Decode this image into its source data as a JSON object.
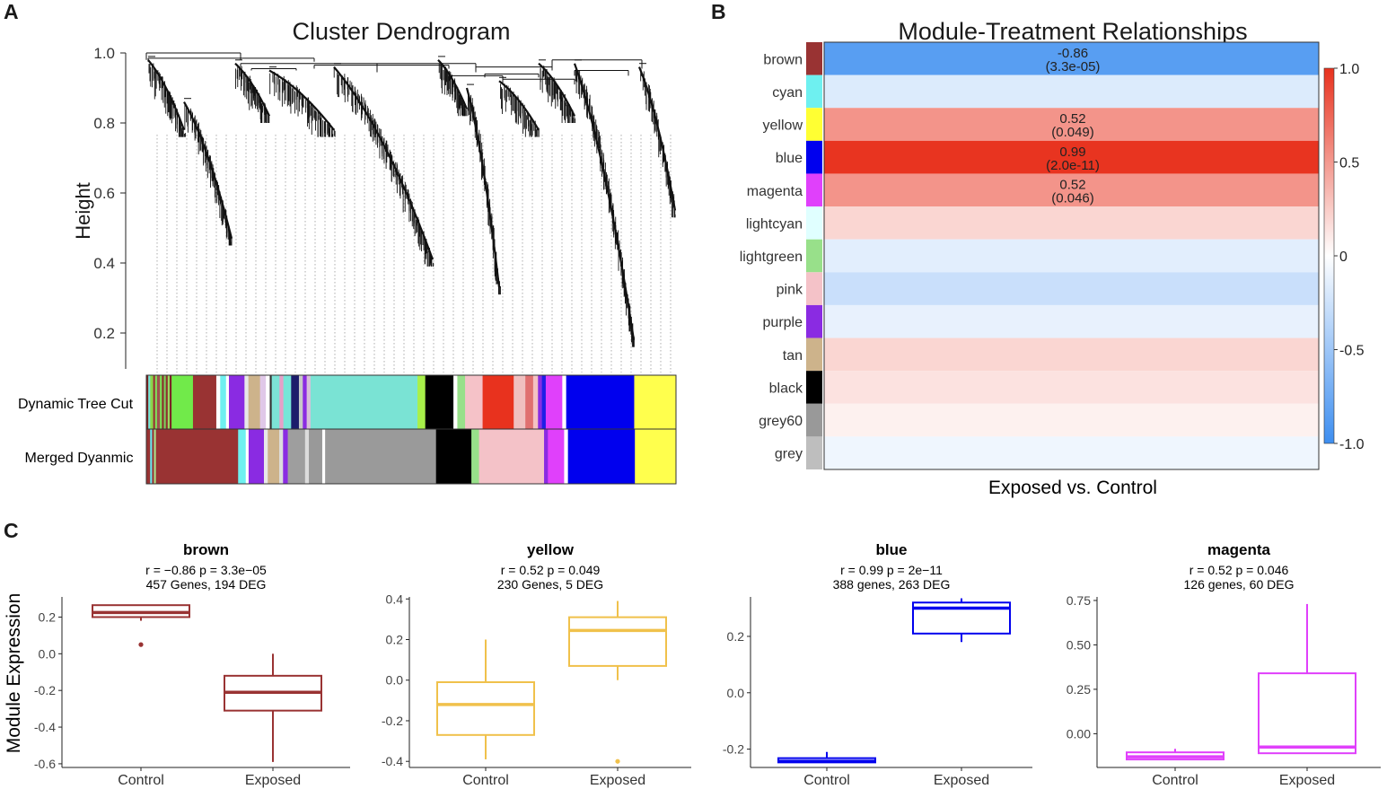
{
  "panels": {
    "a": "A",
    "b": "B",
    "c": "C"
  },
  "dendrogram": {
    "title": "Cluster Dendrogram",
    "ylabel": "Height",
    "yticks": [
      "1.0",
      "0.8",
      "0.6",
      "0.4",
      "0.2"
    ],
    "row_labels": [
      "Dynamic Tree Cut",
      "Merged Dyanmic"
    ],
    "dynamic_tree_cut": [
      {
        "color": "#7b1f1f",
        "w": 2
      },
      {
        "color": "#77e6d8",
        "w": 2
      },
      {
        "color": "#8bd64a",
        "w": 3
      },
      {
        "color": "#993333",
        "w": 2
      },
      {
        "color": "#7fe05a",
        "w": 2
      },
      {
        "color": "#a05050",
        "w": 3
      },
      {
        "color": "#7ae157",
        "w": 2
      },
      {
        "color": "#8b2d2d",
        "w": 2
      },
      {
        "color": "#7ad15c",
        "w": 2
      },
      {
        "color": "#8e3030",
        "w": 2
      },
      {
        "color": "#9bdb62",
        "w": 2
      },
      {
        "color": "#7a2525",
        "w": 2
      },
      {
        "color": "#71ea4a",
        "w": 22
      },
      {
        "color": "#993333",
        "w": 24
      },
      {
        "color": "#ffffff",
        "w": 4
      },
      {
        "color": "#6ef0f0",
        "w": 6
      },
      {
        "color": "#ffffff",
        "w": 3
      },
      {
        "color": "#8a2be2",
        "w": 16
      },
      {
        "color": "#e8e8e8",
        "w": 4
      },
      {
        "color": "#cdb38b",
        "w": 12
      },
      {
        "color": "#e0c8e8",
        "w": 6
      },
      {
        "color": "#ffffff",
        "w": 4
      },
      {
        "color": "#333333",
        "w": 2
      },
      {
        "color": "#7ce3d6",
        "w": 8
      },
      {
        "color": "#e6a0c8",
        "w": 4
      },
      {
        "color": "#77e6d8",
        "w": 8
      },
      {
        "color": "#1c1c6b",
        "w": 8
      },
      {
        "color": "#c8c8c8",
        "w": 4
      },
      {
        "color": "#8a2be2",
        "w": 4
      },
      {
        "color": "#d8bfd8",
        "w": 4
      },
      {
        "color": "#7ae3d4",
        "w": 110
      },
      {
        "color": "#a8f04a",
        "w": 8
      },
      {
        "color": "#000000",
        "w": 29
      },
      {
        "color": "#ffffff",
        "w": 4
      },
      {
        "color": "#98e08a",
        "w": 8
      },
      {
        "color": "#f5c2c8",
        "w": 18
      },
      {
        "color": "#e8321e",
        "w": 32
      },
      {
        "color": "#f0c0c0",
        "w": 12
      },
      {
        "color": "#e07070",
        "w": 8
      },
      {
        "color": "#f4c2c2",
        "w": 5
      },
      {
        "color": "#8a2be2",
        "w": 4
      },
      {
        "color": "#1e1ee6",
        "w": 4
      },
      {
        "color": "#e040fb",
        "w": 17
      },
      {
        "color": "#ffffff",
        "w": 4
      },
      {
        "color": "#0000ee",
        "w": 70
      },
      {
        "color": "#ffff4d",
        "w": 43
      }
    ],
    "merged_dynamic": [
      {
        "color": "#993333",
        "w": 4
      },
      {
        "color": "#66e6ee",
        "w": 2
      },
      {
        "color": "#993333",
        "w": 2
      },
      {
        "color": "#a8e08a",
        "w": 2
      },
      {
        "color": "#993333",
        "w": 86
      },
      {
        "color": "#6ef0f0",
        "w": 8
      },
      {
        "color": "#ffffff",
        "w": 3
      },
      {
        "color": "#8a2be2",
        "w": 16
      },
      {
        "color": "#e8e8e8",
        "w": 4
      },
      {
        "color": "#cdb38b",
        "w": 12
      },
      {
        "color": "#dcdcdc",
        "w": 4
      },
      {
        "color": "#8a2be2",
        "w": 5
      },
      {
        "color": "#9e9e9e",
        "w": 18
      },
      {
        "color": "#dcdcdc",
        "w": 4
      },
      {
        "color": "#999999",
        "w": 14
      },
      {
        "color": "#ffffff",
        "w": 3
      },
      {
        "color": "#9a9a9a",
        "w": 116
      },
      {
        "color": "#000000",
        "w": 37
      },
      {
        "color": "#98e08a",
        "w": 8
      },
      {
        "color": "#f4c2c8",
        "w": 68
      },
      {
        "color": "#8a2be2",
        "w": 4
      },
      {
        "color": "#e040fb",
        "w": 17
      },
      {
        "color": "#ffffff",
        "w": 4
      },
      {
        "color": "#0000ee",
        "w": 70
      },
      {
        "color": "#ffff4d",
        "w": 43
      }
    ]
  },
  "heatmap": {
    "title": "Module-Treatment Relationships",
    "xlabel": "Exposed vs. Control",
    "colorbar_ticks": [
      "1.0",
      "0.5",
      "0",
      "-0.5",
      "-1.0"
    ],
    "colorbar_range": [
      -1.0,
      1.0
    ],
    "rows": [
      {
        "module": "brown",
        "swatch": "#993333",
        "r": -0.86,
        "label1": "-0.86",
        "label2": "(3.3e-05)"
      },
      {
        "module": "cyan",
        "swatch": "#6ef0f0",
        "r": -0.18,
        "label1": "",
        "label2": ""
      },
      {
        "module": "yellow",
        "swatch": "#ffff33",
        "r": 0.52,
        "label1": "0.52",
        "label2": "(0.049)"
      },
      {
        "module": "blue",
        "swatch": "#0000ee",
        "r": 0.99,
        "label1": "0.99",
        "label2": "(2.0e-11)"
      },
      {
        "module": "magenta",
        "swatch": "#e040fb",
        "r": 0.52,
        "label1": "0.52",
        "label2": "(0.046)"
      },
      {
        "module": "lightcyan",
        "swatch": "#e0ffff",
        "r": 0.2,
        "label1": "",
        "label2": ""
      },
      {
        "module": "lightgreen",
        "swatch": "#98e08a",
        "r": -0.15,
        "label1": "",
        "label2": ""
      },
      {
        "module": "pink",
        "swatch": "#f4c2c8",
        "r": -0.28,
        "label1": "",
        "label2": ""
      },
      {
        "module": "purple",
        "swatch": "#8a2be2",
        "r": -0.12,
        "label1": "",
        "label2": ""
      },
      {
        "module": "tan",
        "swatch": "#cdb38b",
        "r": 0.2,
        "label1": "",
        "label2": ""
      },
      {
        "module": "black",
        "swatch": "#000000",
        "r": 0.14,
        "label1": "",
        "label2": ""
      },
      {
        "module": "grey60",
        "swatch": "#999999",
        "r": 0.07,
        "label1": "",
        "label2": ""
      },
      {
        "module": "grey",
        "swatch": "#bebebe",
        "r": -0.08,
        "label1": "",
        "label2": ""
      }
    ]
  },
  "boxplots": {
    "ylabel": "Module Expression",
    "plots": [
      {
        "name": "brown",
        "color": "#993333",
        "stat1": "r = −0.86 p = 3.3e−05",
        "stat2": "457 Genes, 194 DEG",
        "ymin": -0.62,
        "ymax": 0.31,
        "ticks": [
          0.2,
          0.0,
          -0.2,
          -0.4,
          -0.6
        ],
        "tick_labels": [
          "0.2",
          "0.0",
          "-0.2",
          "-0.4",
          "-0.6"
        ],
        "groups": [
          {
            "name": "Control",
            "q1": 0.2,
            "median": 0.225,
            "q3": 0.265,
            "wlo": 0.18,
            "whi": 0.265,
            "outliers": [
              0.05
            ]
          },
          {
            "name": "Exposed",
            "q1": -0.31,
            "median": -0.21,
            "q3": -0.12,
            "wlo": -0.59,
            "whi": 0.0,
            "outliers": []
          }
        ]
      },
      {
        "name": "yellow",
        "color": "#f0c14b",
        "stat1": "r = 0.52 p = 0.049",
        "stat2": "230 Genes, 5 DEG",
        "ymin": -0.43,
        "ymax": 0.41,
        "ticks": [
          0.4,
          0.2,
          0.0,
          -0.2,
          -0.4
        ],
        "tick_labels": [
          "0.4",
          "0.2",
          "0.0",
          "-0.2",
          "-0.4"
        ],
        "groups": [
          {
            "name": "Control",
            "q1": -0.27,
            "median": -0.12,
            "q3": -0.01,
            "wlo": -0.39,
            "whi": 0.2,
            "outliers": []
          },
          {
            "name": "Exposed",
            "q1": 0.07,
            "median": 0.245,
            "q3": 0.31,
            "wlo": 0.0,
            "whi": 0.39,
            "outliers": [
              -0.4
            ]
          }
        ]
      },
      {
        "name": "blue",
        "color": "#0000ee",
        "stat1": "r = 0.99 p = 2e−11",
        "stat2": "388 genes, 263 DEG",
        "ymin": -0.265,
        "ymax": 0.34,
        "ticks": [
          0.2,
          0.0,
          -0.2
        ],
        "tick_labels": [
          "0.2",
          "0.0",
          "-0.2"
        ],
        "groups": [
          {
            "name": "Control",
            "q1": -0.247,
            "median": -0.243,
            "q3": -0.232,
            "wlo": -0.247,
            "whi": -0.21,
            "outliers": []
          },
          {
            "name": "Exposed",
            "q1": 0.21,
            "median": 0.3,
            "q3": 0.32,
            "wlo": 0.18,
            "whi": 0.335,
            "outliers": []
          }
        ]
      },
      {
        "name": "magenta",
        "color": "#e040fb",
        "stat1": "r = 0.52 p = 0.046",
        "stat2": "126 genes, 60 DEG",
        "ymin": -0.19,
        "ymax": 0.77,
        "ticks": [
          0.75,
          0.5,
          0.25,
          0.0
        ],
        "tick_labels": [
          "0.75",
          "0.50",
          "0.25",
          "0.00"
        ],
        "groups": [
          {
            "name": "Control",
            "q1": -0.145,
            "median": -0.13,
            "q3": -0.105,
            "wlo": -0.145,
            "whi": -0.085,
            "outliers": []
          },
          {
            "name": "Exposed",
            "q1": -0.11,
            "median": -0.075,
            "q3": 0.34,
            "wlo": -0.11,
            "whi": 0.73,
            "outliers": []
          }
        ]
      }
    ]
  },
  "chart_data": [
    {
      "type": "other",
      "title": "Cluster Dendrogram",
      "ylabel": "Height",
      "ylim": [
        0.1,
        1.0
      ],
      "annotations": [
        "Dynamic Tree Cut",
        "Merged Dyanmic"
      ]
    },
    {
      "type": "heatmap",
      "title": "Module-Treatment Relationships",
      "xlabel": "Exposed vs. Control",
      "categories": [
        "brown",
        "cyan",
        "yellow",
        "blue",
        "magenta",
        "lightcyan",
        "lightgreen",
        "pink",
        "purple",
        "tan",
        "black",
        "grey60",
        "grey"
      ],
      "values": [
        -0.86,
        -0.18,
        0.52,
        0.99,
        0.52,
        0.2,
        -0.15,
        -0.28,
        -0.12,
        0.2,
        0.14,
        0.07,
        -0.08
      ],
      "zlim": [
        -1.0,
        1.0
      ]
    },
    {
      "type": "box",
      "ylabel": "Module Expression",
      "categories": [
        "Control",
        "Exposed"
      ],
      "series": [
        {
          "name": "brown",
          "medians": [
            0.225,
            -0.21
          ]
        },
        {
          "name": "yellow",
          "medians": [
            -0.12,
            0.245
          ]
        },
        {
          "name": "blue",
          "medians": [
            -0.243,
            0.3
          ]
        },
        {
          "name": "magenta",
          "medians": [
            -0.13,
            -0.075
          ]
        }
      ]
    }
  ]
}
